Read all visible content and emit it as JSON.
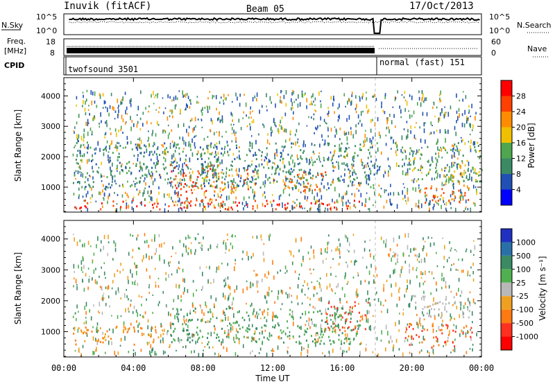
{
  "header": {
    "station": "Inuvik (fitACF)",
    "beam": "Beam 05",
    "date": "17/Oct/2013"
  },
  "nsky_panel": {
    "left_label": "N.Sky",
    "right_label": "N.Search",
    "ticks_left": [
      "10^5",
      "10^0"
    ],
    "ticks_right": [
      "10^5",
      "10^0"
    ]
  },
  "freq_panel": {
    "left_label_1": "Freq.",
    "left_label_2": "[MHz]",
    "right_label": "Nave",
    "ticks_left": [
      "18",
      "8"
    ],
    "ticks_right": [
      "60",
      "0"
    ]
  },
  "cpid_panel": {
    "label": "CPID",
    "modes": [
      "twofsound 3501",
      "normal (fast) 151"
    ]
  },
  "power_panel": {
    "ylabel": "Slant Range [km]",
    "yticks": [
      "1000",
      "2000",
      "3000",
      "4000"
    ],
    "colorbar_label": "Power [dB]",
    "colorbar_ticks": [
      "4",
      "8",
      "12",
      "16",
      "20",
      "24",
      "28"
    ],
    "colors": [
      "#0000ff",
      "#2150b4",
      "#3a8a64",
      "#4ea64e",
      "#f0c000",
      "#ff8c00",
      "#ff4000",
      "#ff0000"
    ]
  },
  "velocity_panel": {
    "ylabel": "Slant Range [km]",
    "yticks": [
      "1000",
      "2000",
      "3000",
      "4000"
    ],
    "colorbar_label": "Velocity [m s⁻¹]",
    "colorbar_ticks": [
      "1000",
      "500",
      "100",
      "25",
      "-25",
      "-100",
      "-500",
      "-1000"
    ],
    "colors": [
      "#2030c0",
      "#2a70a8",
      "#3a8a64",
      "#50b050",
      "#b8b8b8",
      "#f0a020",
      "#ff7a10",
      "#ff3020",
      "#ff0000"
    ]
  },
  "x_axis": {
    "label": "Time UT",
    "ticks": [
      "00:00",
      "04:00",
      "08:00",
      "12:00",
      "16:00",
      "20:00",
      "00:00"
    ]
  },
  "chart_data": [
    {
      "type": "heatmap",
      "title": "Power",
      "xlabel": "Time UT",
      "ylabel": "Slant Range [km]",
      "xlim": [
        0,
        24
      ],
      "ylim": [
        180,
        4600
      ],
      "colorbar": {
        "label": "Power [dB]",
        "range": [
          0,
          30
        ],
        "ticks": [
          4,
          8,
          12,
          16,
          20,
          24,
          28
        ]
      },
      "regions": [
        {
          "x": [
            0.5,
            18
          ],
          "y": [
            300,
            600
          ],
          "level": 28
        },
        {
          "x": [
            6,
            9
          ],
          "y": [
            500,
            1800
          ],
          "level": 26
        },
        {
          "x": [
            8,
            11
          ],
          "y": [
            800,
            1600
          ],
          "level": 22
        },
        {
          "x": [
            12.5,
            15
          ],
          "y": [
            900,
            1600
          ],
          "level": 24
        },
        {
          "x": [
            20,
            23.5
          ],
          "y": [
            500,
            1100
          ],
          "level": 24
        },
        {
          "x": [
            0.5,
            18
          ],
          "y": [
            1000,
            2500
          ],
          "level": 10
        },
        {
          "x": [
            19,
            24
          ],
          "y": [
            1200,
            2500
          ],
          "level": 14
        }
      ],
      "mode_change_time": 18.1
    },
    {
      "type": "heatmap",
      "title": "Velocity",
      "xlabel": "Time UT",
      "ylabel": "Slant Range [km]",
      "xlim": [
        0,
        24
      ],
      "ylim": [
        180,
        4600
      ],
      "colorbar": {
        "label": "Velocity [m s⁻¹]",
        "ticks": [
          1000,
          500,
          100,
          25,
          -25,
          -100,
          -500,
          -1000
        ]
      },
      "regions": [
        {
          "x": [
            0.5,
            6
          ],
          "y": [
            600,
            1200
          ],
          "level": -100
        },
        {
          "x": [
            6,
            17
          ],
          "y": [
            600,
            1800
          ],
          "level": 100
        },
        {
          "x": [
            15,
            17.5
          ],
          "y": [
            1000,
            2000
          ],
          "level": -500
        },
        {
          "x": [
            19.5,
            23.5
          ],
          "y": [
            500,
            1300
          ],
          "level": -500
        },
        {
          "x": [
            20,
            23.5
          ],
          "y": [
            1400,
            2200
          ],
          "level": 0
        }
      ],
      "mode_change_time": 18.1
    }
  ]
}
